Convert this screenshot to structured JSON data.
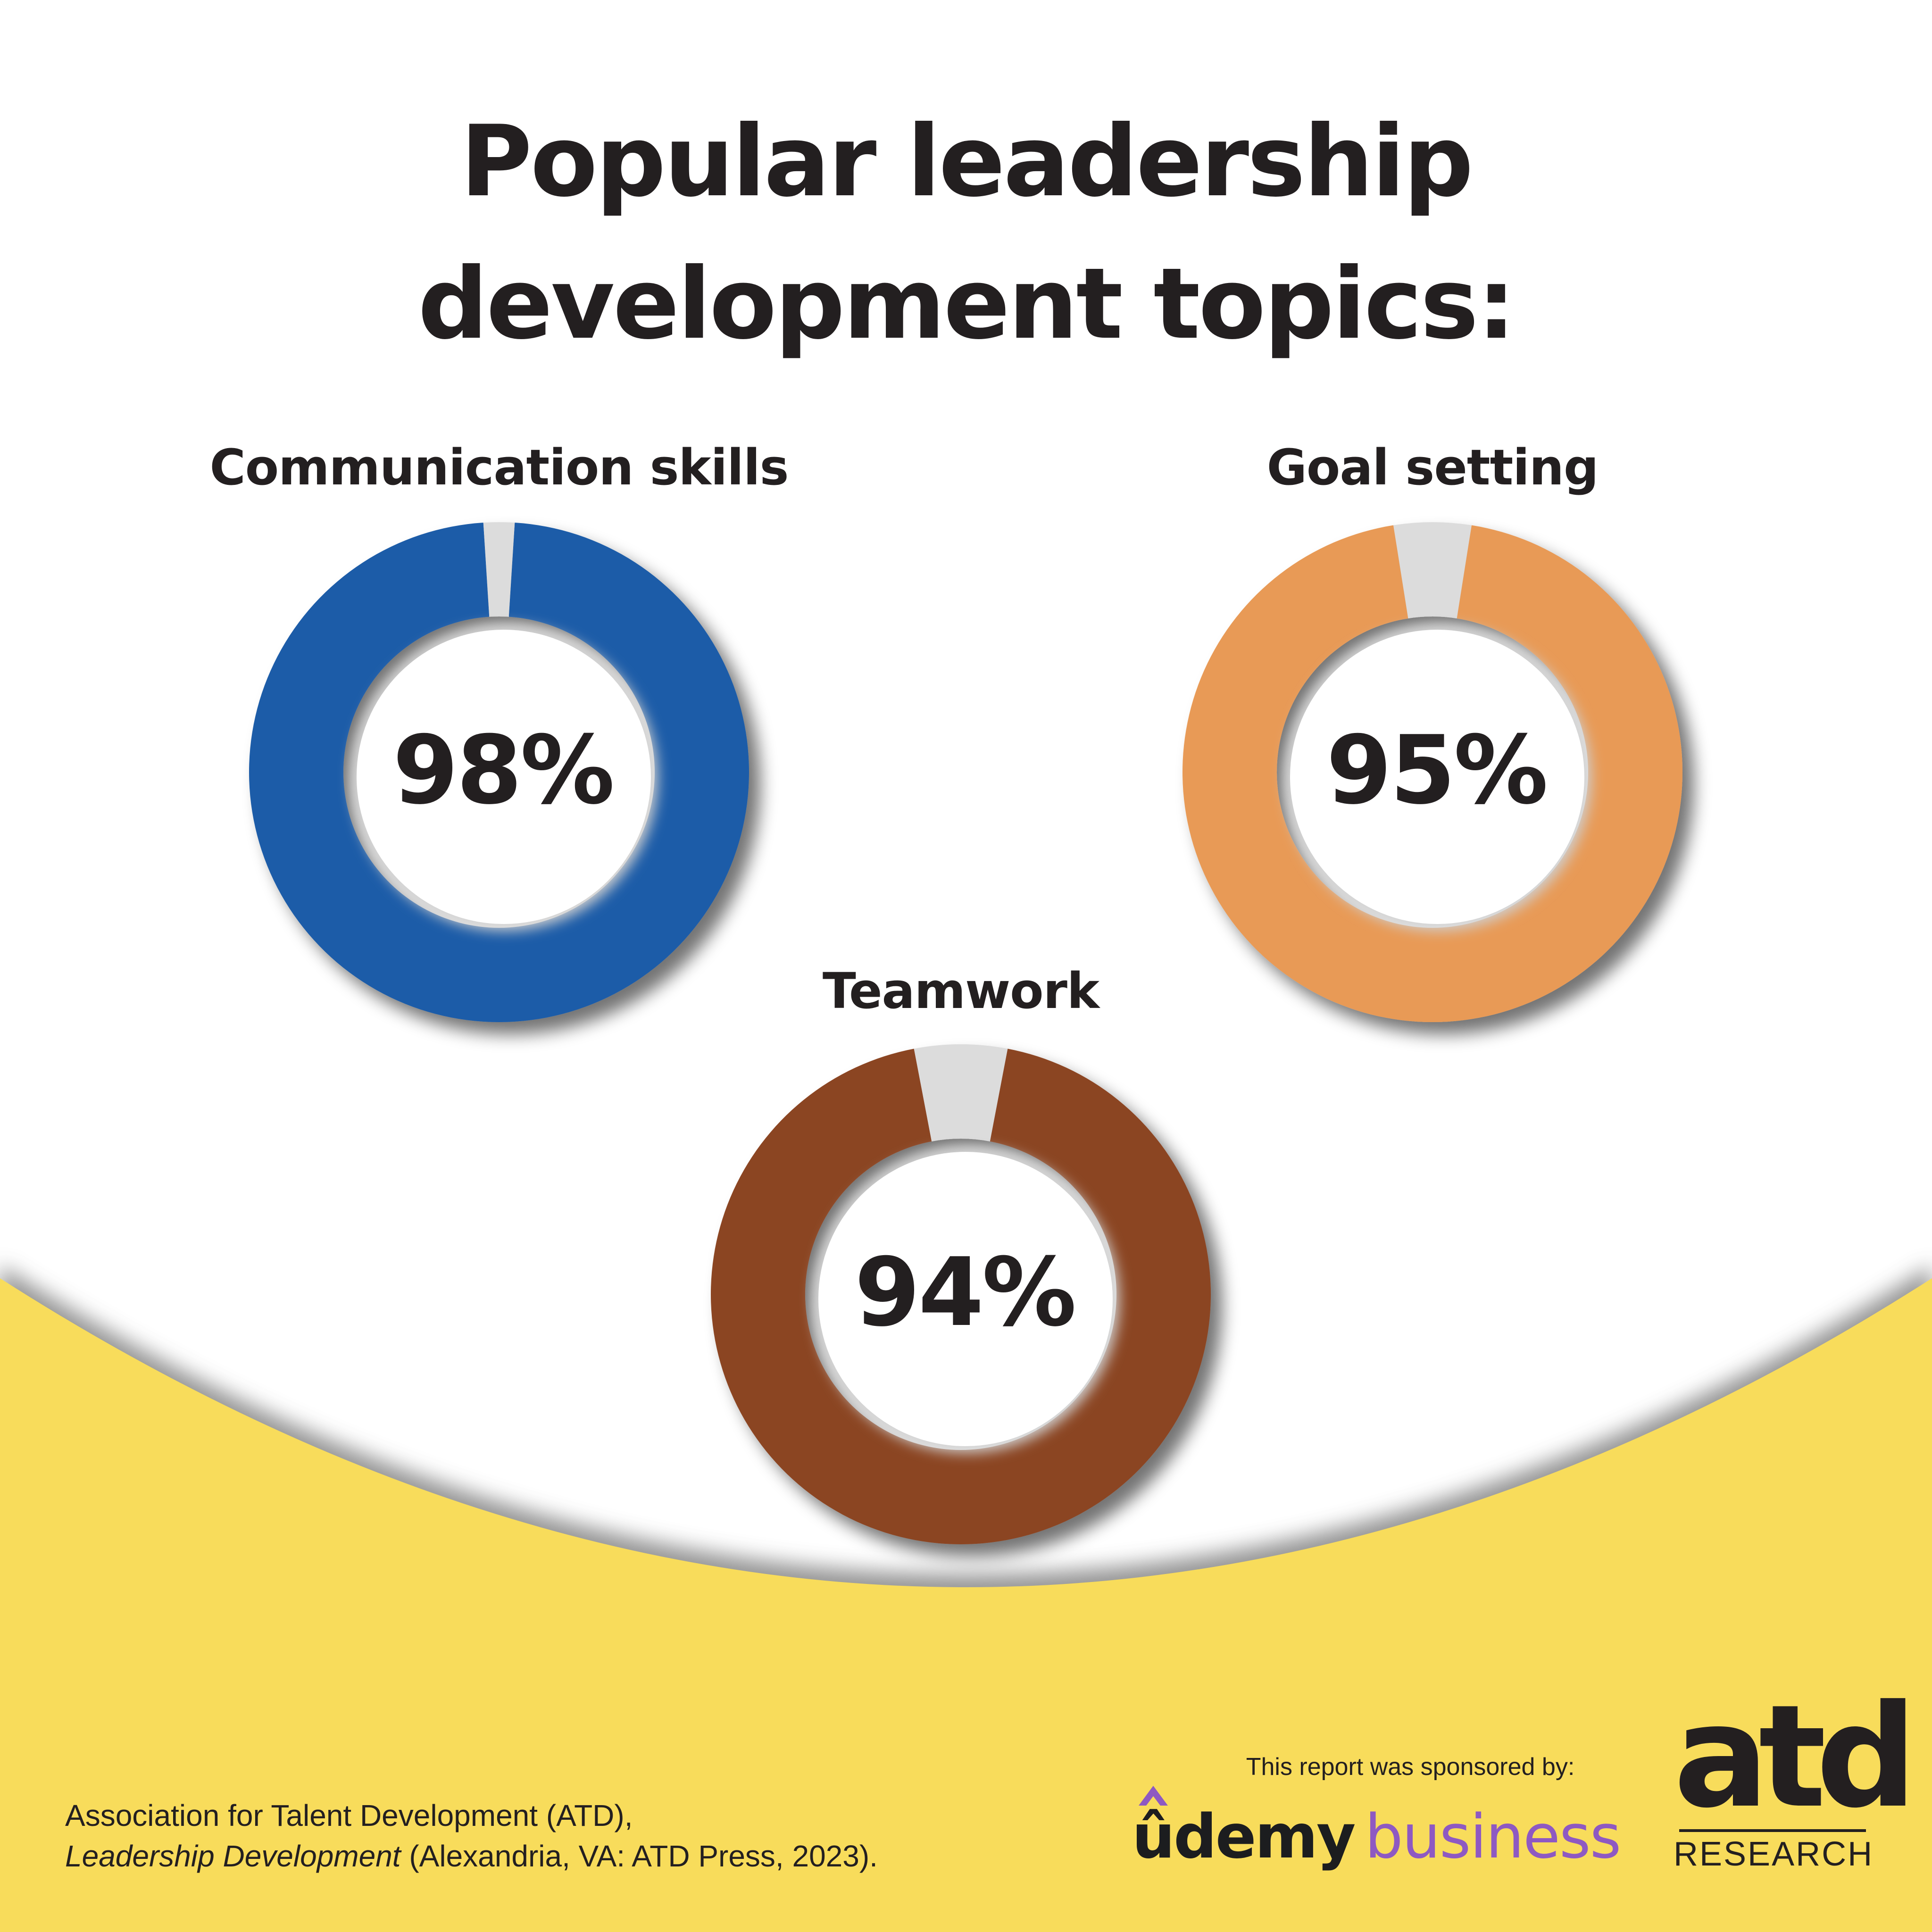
{
  "title_line1": "Popular leadership",
  "title_line2": "development topics:",
  "colors": {
    "background": "#ffffff",
    "footer_band": "#f8dc5b",
    "remainder_slice": "#dcdcdc",
    "text": "#231f20"
  },
  "chart_data": {
    "type": "pie",
    "subtype": "donut",
    "value_unit": "%",
    "series": [
      {
        "name": "Communication skills",
        "value": 98,
        "value_label": "98%",
        "color": "#1c5ca8"
      },
      {
        "name": "Goal setting",
        "value": 95,
        "value_label": "95%",
        "color": "#e89a56"
      },
      {
        "name": "Teamwork",
        "value": 94,
        "value_label": "94%",
        "color": "#8b4424"
      }
    ]
  },
  "citation": {
    "line1": "Association for Talent Development (ATD),",
    "line2_italic": "Leadership Development",
    "line2_rest": " (Alexandria, VA: ATD Press, 2023)."
  },
  "sponsor": {
    "note": "This report was sponsored by:",
    "udemy_word": "ûdemy",
    "business_word": "business"
  },
  "atd_logo": {
    "wordmark": "atd",
    "subtitle": "RESEARCH"
  }
}
